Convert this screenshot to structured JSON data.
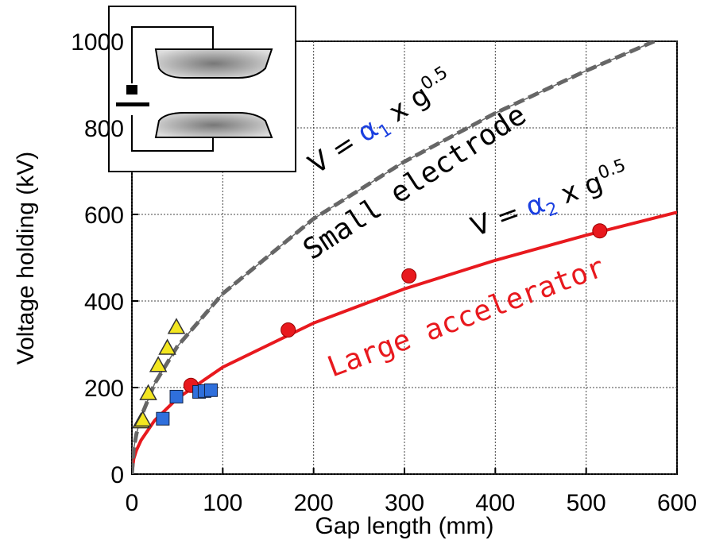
{
  "chart_data": {
    "type": "scatter",
    "x_label": "Gap length (mm)",
    "y_label": "Voltage holding (kV)",
    "xlim": [
      0,
      600
    ],
    "ylim": [
      0,
      1000
    ],
    "xticks": [
      0,
      100,
      200,
      300,
      400,
      500,
      600
    ],
    "yticks": [
      0,
      200,
      400,
      600,
      800,
      1000
    ],
    "grid": true,
    "series": [
      {
        "color": "#e8191e",
        "marker": "circle",
        "x": [
          65,
          172,
          305,
          515
        ],
        "values": [
          205,
          333,
          458,
          562
        ]
      },
      {
        "color": "#2f6fdc",
        "marker": "square",
        "x": [
          34,
          49,
          74,
          80,
          87
        ],
        "values": [
          128,
          179,
          190,
          192,
          194
        ]
      },
      {
        "color": "#f3e620",
        "marker": "triangle",
        "x": [
          10,
          12,
          18,
          29,
          39,
          49
        ],
        "values": [
          120,
          124,
          185,
          250,
          290,
          338
        ]
      },
      {
        "color": "#e8191e",
        "marker": "line",
        "x": [
          0,
          2,
          5,
          10,
          25,
          50,
          100,
          200,
          300,
          400,
          500,
          600
        ],
        "values": [
          0,
          35,
          55,
          78,
          124,
          175,
          247,
          349,
          428,
          494,
          552,
          605
        ]
      },
      {
        "color": "#666666",
        "marker": "dashed",
        "x": [
          0,
          2,
          5,
          10,
          25,
          50,
          100,
          200,
          300,
          400,
          500,
          575
        ],
        "values": [
          0,
          59,
          93,
          132,
          209,
          295,
          417,
          590,
          722,
          834,
          932,
          1000
        ]
      }
    ],
    "annotations": {
      "small": "Small electrode",
      "large": "Large accelerator",
      "formula1": [
        "V = ",
        "α",
        "1",
        " x g",
        "0.5"
      ],
      "formula2": [
        "V = ",
        "α",
        "2",
        " x g",
        "0.5"
      ]
    }
  }
}
